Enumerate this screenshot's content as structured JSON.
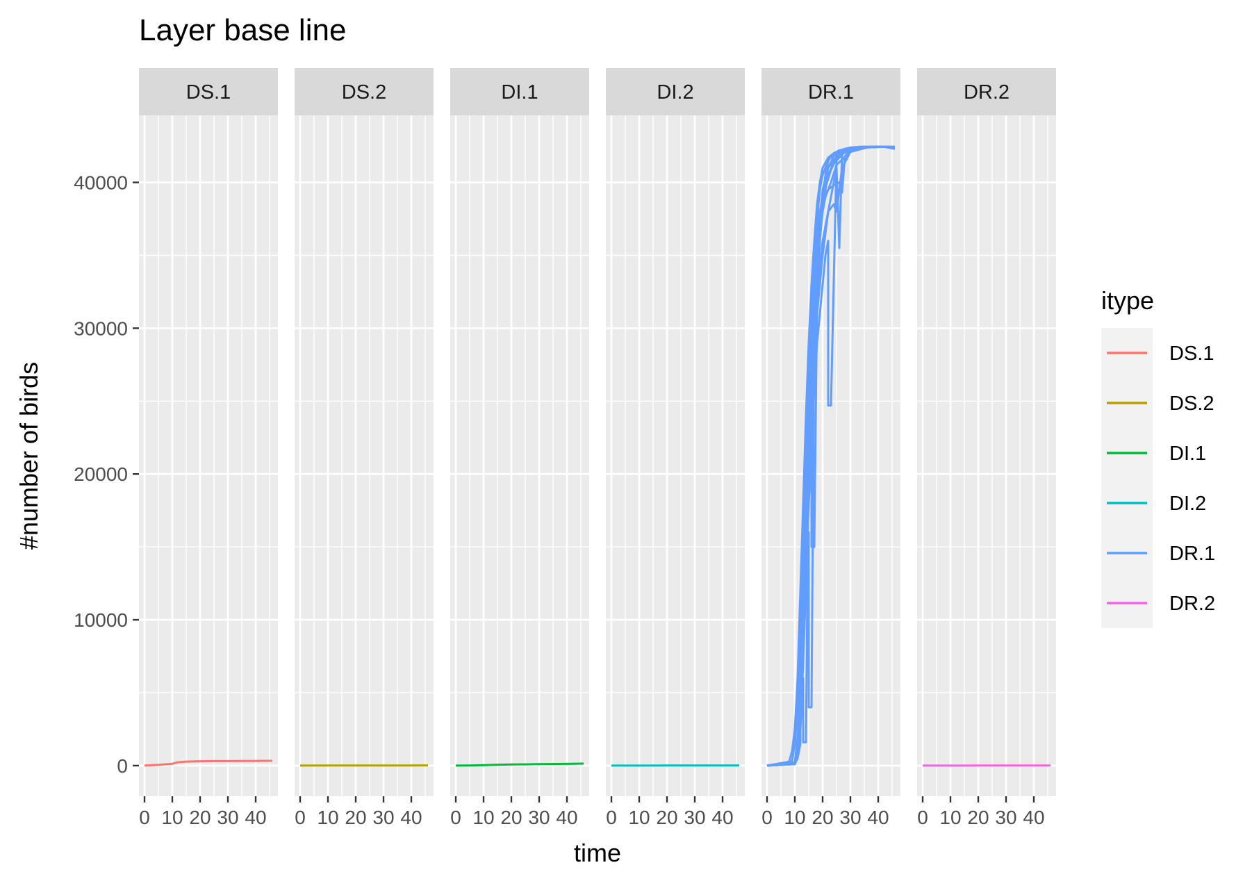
{
  "chart_data": {
    "type": "line",
    "title": "Layer base line",
    "xlabel": "time",
    "ylabel": "#number of birds",
    "facets": [
      "DS.1",
      "DS.2",
      "DI.1",
      "DI.2",
      "DR.1",
      "DR.2"
    ],
    "x_ticks": [
      0,
      10,
      20,
      30,
      40
    ],
    "x_tick_labels": [
      "0",
      "10",
      "20",
      "30",
      "40"
    ],
    "y_ticks": [
      0,
      10000,
      20000,
      30000,
      40000
    ],
    "y_tick_labels": [
      "0",
      "10000",
      "20000",
      "30000",
      "40000"
    ],
    "xlim": [
      -2,
      48
    ],
    "ylim": [
      -2100,
      44600
    ],
    "grid": true,
    "legend": {
      "title": "itype",
      "position": "right",
      "entries": [
        "DS.1",
        "DS.2",
        "DI.1",
        "DI.2",
        "DR.1",
        "DR.2"
      ]
    },
    "colors": {
      "DS.1": "#F8766D",
      "DS.2": "#B79F00",
      "DI.1": "#00BA38",
      "DI.2": "#00BFC4",
      "DR.1": "#619CFF",
      "DR.2": "#F564E3"
    },
    "series": [
      {
        "name": "DS.1",
        "facet": "DS.1",
        "x": [
          0,
          5,
          10,
          12,
          15,
          20,
          25,
          30,
          35,
          40,
          45,
          46
        ],
        "y": [
          0,
          50,
          130,
          230,
          280,
          300,
          310,
          310,
          315,
          320,
          330,
          330
        ]
      },
      {
        "name": "DS.2",
        "facet": "DS.2",
        "x": [
          0,
          10,
          20,
          30,
          40,
          46
        ],
        "y": [
          0,
          5,
          8,
          10,
          12,
          15
        ]
      },
      {
        "name": "DI.1",
        "facet": "DI.1",
        "x": [
          0,
          5,
          10,
          15,
          20,
          30,
          40,
          46
        ],
        "y": [
          0,
          10,
          30,
          60,
          80,
          100,
          120,
          140
        ]
      },
      {
        "name": "DI.2",
        "facet": "DI.2",
        "x": [
          0,
          10,
          20,
          30,
          40,
          46
        ],
        "y": [
          0,
          2,
          4,
          5,
          6,
          8
        ]
      },
      {
        "name": "DR.2",
        "facet": "DR.2",
        "x": [
          0,
          10,
          20,
          30,
          40,
          46
        ],
        "y": [
          0,
          2,
          4,
          5,
          6,
          8
        ]
      },
      {
        "name": "DR.1",
        "facet": "DR.1",
        "x": [
          0,
          5,
          8,
          9,
          10,
          11,
          12,
          13,
          14,
          15,
          16,
          17,
          18,
          19,
          20,
          22,
          24,
          26,
          28,
          30,
          34,
          38,
          42,
          46
        ],
        "y": [
          0,
          50,
          300,
          1000,
          2500,
          6000,
          12000,
          18000,
          24000,
          29000,
          33000,
          36000,
          38500,
          40000,
          41000,
          41700,
          42000,
          42200,
          42300,
          42400,
          42450,
          42450,
          42450,
          42300
        ]
      },
      {
        "name": "DR.1",
        "facet": "DR.1",
        "x": [
          0,
          9,
          10,
          11,
          12,
          13,
          14,
          15,
          16,
          17,
          18,
          19,
          20,
          22,
          24,
          28,
          32,
          36,
          40
        ],
        "y": [
          0,
          300,
          1500,
          4000,
          8000,
          14000,
          20000,
          26000,
          31000,
          35000,
          37500,
          39500,
          40500,
          41500,
          42000,
          42300,
          42400,
          42450,
          42450
        ]
      },
      {
        "name": "DR.1",
        "facet": "DR.1",
        "x": [
          0,
          10,
          11,
          12,
          13,
          14,
          15,
          16,
          17,
          18,
          20,
          22,
          26,
          30,
          36,
          42
        ],
        "y": [
          0,
          200,
          2000,
          5000,
          10000,
          16000,
          22000,
          28000,
          32000,
          36000,
          39000,
          41000,
          42000,
          42300,
          42450,
          42450
        ]
      },
      {
        "name": "DR.1",
        "facet": "DR.1",
        "x": [
          0,
          10,
          11,
          12,
          12,
          13,
          14,
          15,
          16,
          17,
          18,
          19,
          20,
          21,
          22,
          24,
          28,
          34,
          40
        ],
        "y": [
          0,
          100,
          500,
          1500,
          8000,
          12000,
          17000,
          21000,
          26000,
          30000,
          34000,
          37000,
          39000,
          40500,
          41500,
          42000,
          42300,
          42400,
          42450
        ]
      },
      {
        "name": "DR.1",
        "facet": "DR.1",
        "x": [
          0,
          10,
          11,
          12,
          13,
          14,
          15,
          16,
          17,
          18,
          19,
          20,
          22,
          25,
          30,
          35,
          44
        ],
        "y": [
          0,
          100,
          800,
          3000,
          7000,
          13000,
          19000,
          25000,
          30000,
          34000,
          37000,
          39000,
          40500,
          41800,
          42200,
          42400,
          42450
        ]
      },
      {
        "name": "DR.1",
        "facet": "DR.1",
        "x": [
          0,
          10,
          11,
          12,
          13,
          14,
          15,
          16,
          17,
          18,
          19,
          20,
          21,
          22,
          23,
          24,
          25,
          26,
          26,
          27,
          30,
          34,
          40,
          46
        ],
        "y": [
          0,
          100,
          1500,
          6000,
          11000,
          15000,
          20000,
          25000,
          28000,
          31000,
          33000,
          35000,
          36500,
          38000,
          39000,
          40000,
          41000,
          35500,
          35500,
          42000,
          42300,
          42400,
          42450,
          42450
        ]
      },
      {
        "name": "DR.1",
        "facet": "DR.1",
        "x": [
          0,
          10,
          11,
          12,
          13,
          14,
          15,
          16,
          17,
          18,
          19,
          20,
          21,
          22,
          22,
          23,
          25,
          28,
          32,
          38
        ],
        "y": [
          0,
          200,
          1000,
          4000,
          9000,
          14000,
          18000,
          22000,
          26000,
          29000,
          31000,
          33000,
          35000,
          36000,
          24700,
          24700,
          41500,
          42100,
          42300,
          42450
        ]
      },
      {
        "name": "DR.1",
        "facet": "DR.1",
        "x": [
          0,
          10,
          11,
          12,
          13,
          14,
          15,
          16,
          16,
          17,
          18,
          19,
          20,
          22,
          26,
          30,
          34,
          40
        ],
        "y": [
          0,
          150,
          1200,
          3500,
          8500,
          13500,
          18500,
          22500,
          15000,
          15000,
          32000,
          36000,
          38500,
          40500,
          42000,
          42300,
          42400,
          42450
        ]
      },
      {
        "name": "DR.1",
        "facet": "DR.1",
        "x": [
          0,
          10,
          11,
          12,
          13,
          14,
          15,
          15,
          16,
          17,
          18,
          19,
          20,
          22,
          24,
          28,
          32,
          38
        ],
        "y": [
          0,
          120,
          1000,
          3000,
          7500,
          12000,
          16000,
          4000,
          4000,
          31000,
          35000,
          37500,
          39500,
          41000,
          41800,
          42300,
          42400,
          42450
        ]
      },
      {
        "name": "DR.1",
        "facet": "DR.1",
        "x": [
          0,
          10,
          11,
          12,
          13,
          13,
          14,
          15,
          16,
          17,
          18,
          20,
          24,
          28,
          34,
          40
        ],
        "y": [
          0,
          100,
          800,
          2500,
          6000,
          1600,
          1600,
          22000,
          28000,
          32000,
          35500,
          39000,
          41500,
          42200,
          42400,
          42450
        ]
      },
      {
        "name": "DR.1",
        "facet": "DR.1",
        "x": [
          0,
          10,
          11,
          12,
          13,
          14,
          15,
          16,
          17,
          18,
          19,
          20,
          21,
          23,
          25,
          30,
          36,
          42
        ],
        "y": [
          0,
          180,
          1400,
          4500,
          9500,
          15500,
          21000,
          26000,
          30000,
          33500,
          36000,
          38000,
          39000,
          40000,
          41200,
          42100,
          42400,
          42450
        ]
      },
      {
        "name": "DR.1",
        "facet": "DR.1",
        "x": [
          0,
          9,
          10,
          11,
          12,
          13,
          14,
          15,
          16,
          17,
          18,
          19,
          20,
          22,
          24,
          26,
          27,
          28,
          30,
          34,
          40,
          46
        ],
        "y": [
          0,
          200,
          1800,
          5000,
          10500,
          16500,
          22500,
          27500,
          31500,
          34500,
          36500,
          38000,
          39000,
          39500,
          39800,
          40000,
          39300,
          41800,
          42200,
          42400,
          42450,
          42400
        ]
      },
      {
        "name": "DR.1",
        "facet": "DR.1",
        "x": [
          0,
          10,
          11,
          12,
          13,
          14,
          15,
          16,
          17,
          18,
          19,
          20,
          21,
          22,
          24,
          25,
          27,
          30,
          36,
          44
        ],
        "y": [
          0,
          100,
          900,
          3200,
          8000,
          13000,
          18000,
          23000,
          27500,
          31000,
          34000,
          36000,
          37000,
          38000,
          38500,
          38000,
          41000,
          42100,
          42400,
          42450
        ]
      }
    ]
  }
}
